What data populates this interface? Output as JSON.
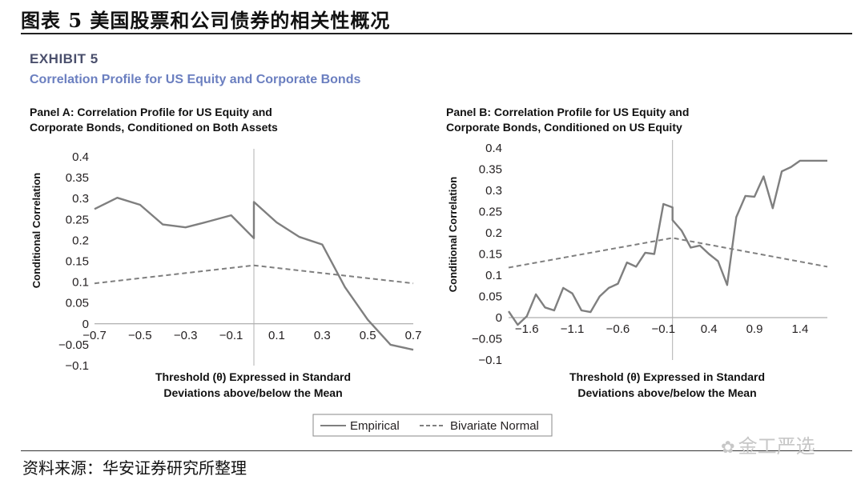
{
  "header": {
    "figure_title": "图表 5 美国股票和公司债券的相关性概况",
    "exhibit_label": "EXHIBIT 5",
    "exhibit_subtitle": "Correlation Profile for US Equity and Corporate Bonds"
  },
  "chart_data": [
    {
      "type": "line",
      "panel_title_line1": "Panel A: Correlation Profile for US Equity and",
      "panel_title_line2": "Corporate Bonds, Conditioned on Both Assets",
      "ylabel": "Conditional Correlation",
      "xlabel_line1": "Threshold (θ) Expressed in Standard",
      "xlabel_line2": "Deviations above/below the Mean",
      "xlim": [
        -0.7,
        0.7
      ],
      "ylim": [
        -0.1,
        0.4
      ],
      "xticks": [
        -0.7,
        -0.5,
        -0.3,
        -0.1,
        0.1,
        0.3,
        0.5,
        0.7
      ],
      "xtick_labels": [
        "−0.7",
        "−0.5",
        "−0.3",
        "−0.1",
        "0.1",
        "0.3",
        "0.5",
        "0.7"
      ],
      "yticks": [
        -0.1,
        -0.05,
        0,
        0.05,
        0.1,
        0.15,
        0.2,
        0.25,
        0.3,
        0.35,
        0.4
      ],
      "ytick_labels": [
        "−0.1",
        "−0.05",
        "0",
        "0.05",
        "0.1",
        "0.15",
        "0.2",
        "0.25",
        "0.3",
        "0.35",
        "0.4"
      ],
      "vline_x": 0,
      "series": [
        {
          "name": "Empirical",
          "style": "solid",
          "color": "#7f7f7f",
          "x": [
            -0.7,
            -0.6,
            -0.5,
            -0.4,
            -0.3,
            -0.2,
            -0.1,
            0,
            0,
            0.1,
            0.2,
            0.3,
            0.4,
            0.5,
            0.6,
            0.7
          ],
          "y": [
            0.275,
            0.302,
            0.285,
            0.238,
            0.231,
            0.245,
            0.26,
            0.205,
            0.292,
            0.243,
            0.208,
            0.19,
            0.088,
            0.01,
            -0.05,
            -0.062
          ]
        },
        {
          "name": "Bivariate Normal",
          "style": "dashed",
          "color": "#7f7f7f",
          "x": [
            -0.7,
            0,
            0.7
          ],
          "y": [
            0.097,
            0.14,
            0.097
          ]
        }
      ]
    },
    {
      "type": "line",
      "panel_title_line1": "Panel B: Correlation Profile for US Equity and",
      "panel_title_line2": "Corporate Bonds, Conditioned on US Equity",
      "ylabel": "Conditional Correlation",
      "xlabel_line1": "Threshold (θ) Expressed in Standard",
      "xlabel_line2": "Deviations above/below the Mean",
      "xlim": [
        -1.8,
        1.7
      ],
      "ylim": [
        -0.1,
        0.4
      ],
      "xticks": [
        -1.6,
        -1.1,
        -0.6,
        -0.1,
        0.4,
        0.9,
        1.4
      ],
      "xtick_labels": [
        "−1.6",
        "−1.1",
        "−0.6",
        "−0.1",
        "0.4",
        "0.9",
        "1.4"
      ],
      "yticks": [
        -0.1,
        -0.05,
        0,
        0.05,
        0.1,
        0.15,
        0.2,
        0.25,
        0.3,
        0.35,
        0.4
      ],
      "ytick_labels": [
        "−0.1",
        "−0.05",
        "0",
        "0.05",
        "0.1",
        "0.15",
        "0.2",
        "0.25",
        "0.3",
        "0.35",
        "0.4"
      ],
      "vline_x": 0,
      "series": [
        {
          "name": "Empirical",
          "style": "solid",
          "color": "#7f7f7f",
          "x": [
            -1.8,
            -1.7,
            -1.6,
            -1.5,
            -1.4,
            -1.3,
            -1.2,
            -1.1,
            -1.0,
            -0.9,
            -0.8,
            -0.7,
            -0.6,
            -0.5,
            -0.4,
            -0.3,
            -0.2,
            -0.1,
            0,
            0,
            0.1,
            0.2,
            0.3,
            0.4,
            0.5,
            0.6,
            0.7,
            0.8,
            0.9,
            1.0,
            1.1,
            1.2,
            1.3,
            1.4,
            1.5,
            1.7
          ],
          "y": [
            0.015,
            -0.017,
            0.003,
            0.055,
            0.024,
            0.017,
            0.07,
            0.057,
            0.017,
            0.013,
            0.05,
            0.07,
            0.08,
            0.13,
            0.12,
            0.153,
            0.15,
            0.268,
            0.26,
            0.23,
            0.205,
            0.165,
            0.17,
            0.15,
            0.133,
            0.077,
            0.237,
            0.287,
            0.285,
            0.333,
            0.258,
            0.345,
            0.355,
            0.37,
            0.37,
            0.37
          ]
        },
        {
          "name": "Bivariate Normal",
          "style": "dashed",
          "color": "#7f7f7f",
          "x": [
            -1.8,
            0,
            1.7
          ],
          "y": [
            0.118,
            0.188,
            0.12
          ]
        }
      ]
    }
  ],
  "legend": {
    "items": [
      {
        "label": "Empirical",
        "style": "solid"
      },
      {
        "label": "Bivariate Normal",
        "style": "dashed"
      }
    ]
  },
  "footer": {
    "source": "资料来源：华安证券研究所整理",
    "watermark_text": "金工严选",
    "watermark_icon": "wechat-icon"
  }
}
